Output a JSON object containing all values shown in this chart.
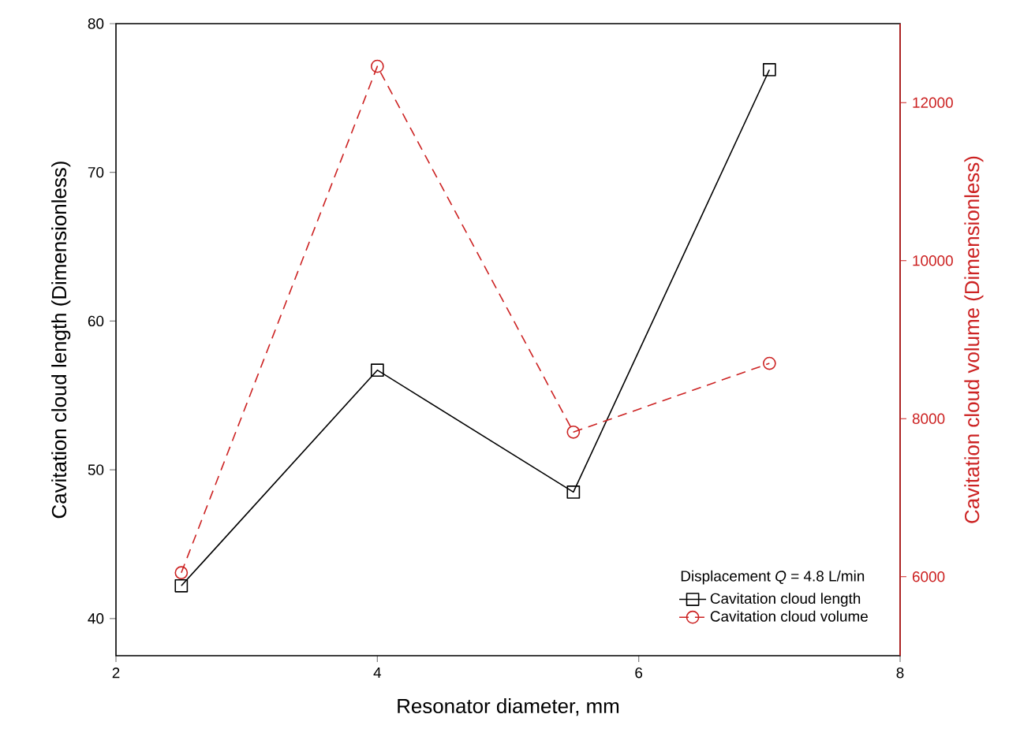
{
  "chart_data": {
    "type": "line",
    "xlabel": "Resonator diameter, mm",
    "ylabel": "Cavitation cloud length (Dimensionless)",
    "y2label": "Cavitation cloud volume (Dimensionless)",
    "legend_title": "Displacement *Q* = 4.8 L/min",
    "legend": "bottom right",
    "grid": false,
    "x": [
      2.5,
      4,
      5.5,
      7
    ],
    "xlim": [
      2,
      8
    ],
    "xticks": [
      2,
      4,
      6,
      8
    ],
    "ylim": [
      37.5,
      80
    ],
    "yticks": [
      40,
      50,
      60,
      70,
      80
    ],
    "y2lim": [
      5000,
      13000
    ],
    "y2ticks": [
      6000,
      8000,
      10000,
      12000
    ],
    "series": [
      {
        "name": "Cavitation cloud length",
        "color": "#000000",
        "marker": "square",
        "line_style": "solid",
        "values": [
          42.2,
          56.7,
          48.5,
          76.9
        ]
      },
      {
        "name": "Cavitation cloud volume",
        "color": "#cc2222",
        "marker": "circle",
        "line_style": "dashed",
        "axis": "y2",
        "values": [
          6050,
          12460,
          7830,
          8700
        ]
      }
    ]
  }
}
